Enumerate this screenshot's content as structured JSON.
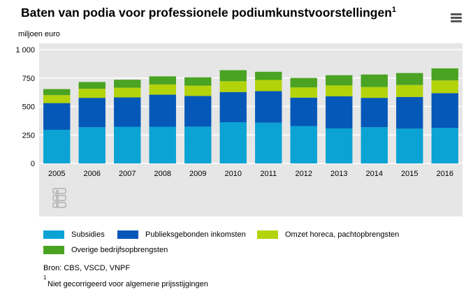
{
  "title": {
    "text": "Baten van podia voor professionele podiumkunstvoorstellingen",
    "sup": "1"
  },
  "menu_icon": "hamburger-menu-icon",
  "unit_label": "miljoen euro",
  "colors": {
    "Subsidies": "#0aa3d4",
    "Publieksgebonden inkomsten": "#0558b8",
    "Omzet horeca, pachtopbrengsten": "#b3d30a",
    "Overige bedrijfsopbrengsten": "#4aa322",
    "plot_bg": "#e6e6e6",
    "grid": "#ffffff"
  },
  "logo": {
    "text": "cbs",
    "icon": "cbs-logo-icon"
  },
  "source": "Bron: CBS, VSCD, VNPF",
  "footnote": {
    "mark": "1",
    "text": "Niet gecorrigeerd voor algemene prijsstijgingen"
  },
  "chart_data": {
    "type": "bar",
    "stacked": true,
    "categories": [
      "2005",
      "2006",
      "2007",
      "2008",
      "2009",
      "2010",
      "2011",
      "2012",
      "2013",
      "2014",
      "2015",
      "2016"
    ],
    "series": [
      {
        "name": "Subsidies",
        "values": [
          295,
          318,
          322,
          322,
          323,
          362,
          358,
          328,
          307,
          318,
          306,
          312
        ]
      },
      {
        "name": "Publieksgebonden inkomsten",
        "values": [
          235,
          258,
          258,
          282,
          270,
          265,
          277,
          250,
          283,
          258,
          278,
          305
        ]
      },
      {
        "name": "Omzet horeca, pachtopbrengsten",
        "values": [
          70,
          80,
          85,
          90,
          90,
          95,
          98,
          90,
          95,
          95,
          105,
          112
        ]
      },
      {
        "name": "Overige bedrijfsopbrengsten",
        "values": [
          53,
          59,
          70,
          71,
          73,
          97,
          72,
          83,
          90,
          110,
          105,
          106
        ]
      }
    ],
    "yticks": [
      "0",
      "250",
      "500",
      "750",
      "1 000"
    ],
    "ylim": [
      0,
      1000
    ],
    "ylabel": "miljoen euro",
    "grid": true,
    "legend_position": "bottom"
  }
}
